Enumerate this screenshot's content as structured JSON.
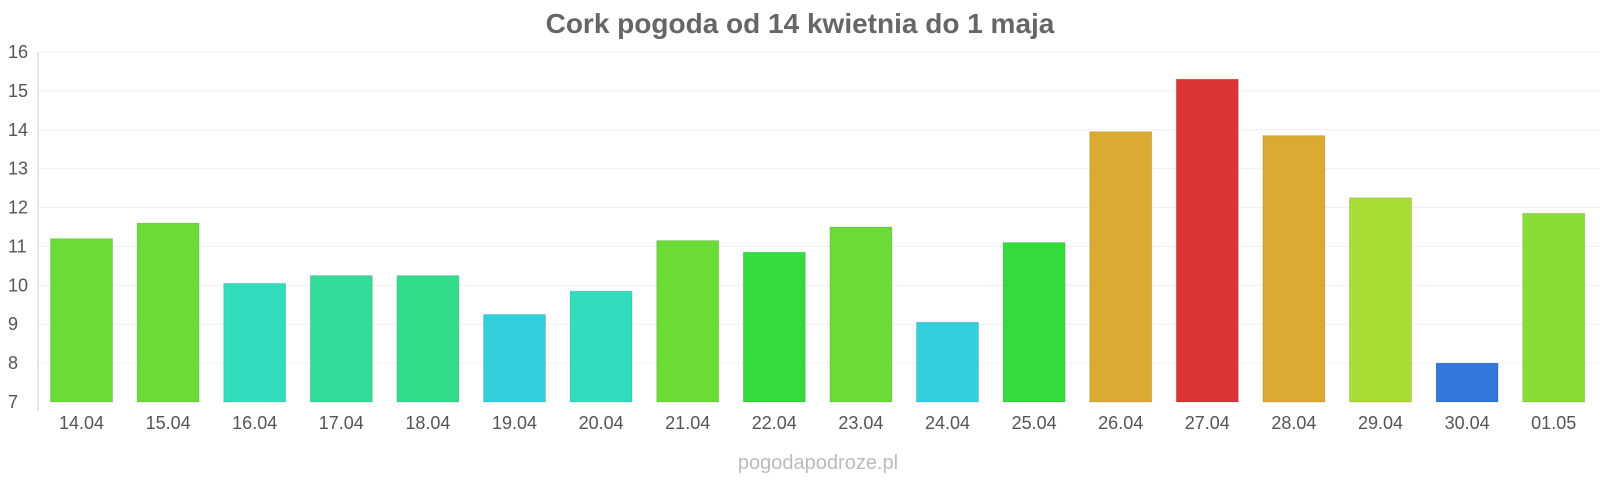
{
  "chart_data": {
    "type": "bar",
    "title": "Cork pogoda od 14 kwietnia do 1 maja",
    "xlabel": "",
    "ylabel": "",
    "categories": [
      "14.04",
      "15.04",
      "16.04",
      "17.04",
      "18.04",
      "19.04",
      "20.04",
      "21.04",
      "22.04",
      "23.04",
      "24.04",
      "25.04",
      "26.04",
      "27.04",
      "28.04",
      "29.04",
      "30.04",
      "01.05"
    ],
    "values": [
      11.2,
      11.6,
      10.05,
      10.25,
      10.25,
      9.25,
      9.85,
      11.15,
      10.85,
      11.5,
      9.05,
      11.1,
      13.95,
      15.3,
      13.85,
      12.25,
      8.0,
      11.85
    ],
    "colors": [
      "#6bdc36",
      "#6bdc36",
      "#33dcbd",
      "#33dc98",
      "#33dc8a",
      "#33cfdc",
      "#33dcbd",
      "#6bdc36",
      "#33dc3a",
      "#6bdc36",
      "#33cfdc",
      "#33dc3a",
      "#dbaa33",
      "#db3535",
      "#dbaa33",
      "#a8dc33",
      "#3377db",
      "#88dc33"
    ],
    "ylim": [
      7,
      16
    ],
    "yticks": [
      7,
      8,
      9,
      10,
      11,
      12,
      13,
      14,
      15,
      16
    ],
    "grid": true,
    "legend": "none"
  },
  "footer": {
    "credit": "pogodapodroze.pl"
  }
}
